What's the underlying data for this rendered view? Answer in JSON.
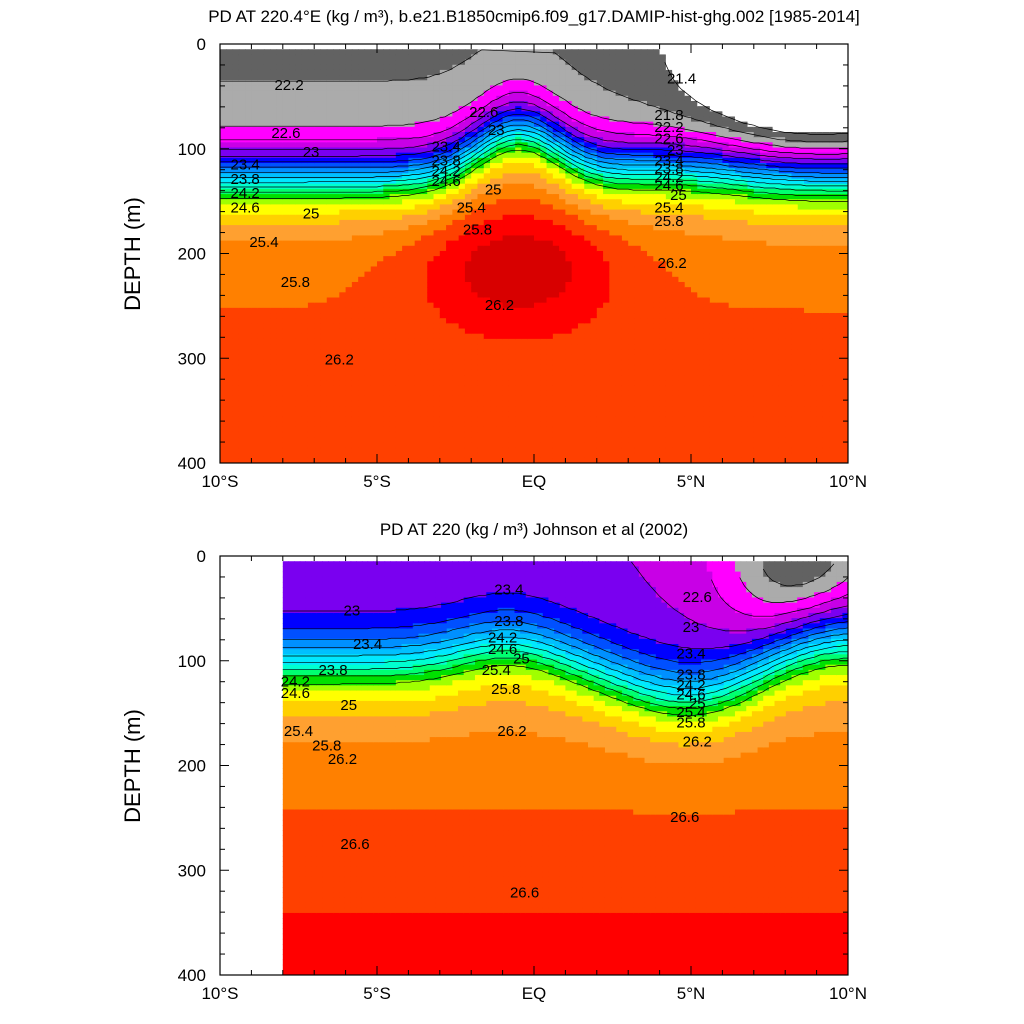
{
  "chart_data": [
    {
      "type": "heatmap",
      "title": "PD AT 220.4°E (kg / m³), b.e21.B1850cmip6.f09_g17.DAMIP-hist-ghg.002 [1985-2014]",
      "ylabel": "DEPTH (m)",
      "xlabel": "",
      "xlim": [
        -10,
        10
      ],
      "ylim": [
        400,
        0
      ],
      "x_ticks": [
        {
          "value": -10,
          "label": "10°S"
        },
        {
          "value": -5,
          "label": "5°S"
        },
        {
          "value": 0,
          "label": "EQ"
        },
        {
          "value": 5,
          "label": "5°N"
        },
        {
          "value": 10,
          "label": "10°N"
        }
      ],
      "y_ticks": [
        0,
        100,
        200,
        300,
        400
      ],
      "data_extent": {
        "x": [
          -10,
          10
        ],
        "y": [
          5,
          400
        ]
      },
      "contour_levels": [
        21.4,
        21.8,
        22.2,
        22.6,
        23.0,
        23.4,
        23.8,
        24.2,
        24.6,
        25.0,
        25.4,
        25.8,
        26.2,
        26.6
      ],
      "contour_labels": [
        {
          "x": -7.8,
          "y": 40,
          "text": "22.2"
        },
        {
          "x": -7.9,
          "y": 86,
          "text": "22.6"
        },
        {
          "x": -7.1,
          "y": 104,
          "text": "23"
        },
        {
          "x": -9.2,
          "y": 116,
          "text": "23.4"
        },
        {
          "x": -9.2,
          "y": 130,
          "text": "23.8"
        },
        {
          "x": -9.2,
          "y": 143,
          "text": "24.2"
        },
        {
          "x": -9.2,
          "y": 157,
          "text": "24.6"
        },
        {
          "x": -7.1,
          "y": 163,
          "text": "25"
        },
        {
          "x": -8.6,
          "y": 190,
          "text": "25.4"
        },
        {
          "x": -7.6,
          "y": 228,
          "text": "25.8"
        },
        {
          "x": -6.2,
          "y": 302,
          "text": "26.2"
        },
        {
          "x": -1.6,
          "y": 66,
          "text": "22.6"
        },
        {
          "x": -1.2,
          "y": 83,
          "text": "23"
        },
        {
          "x": -2.8,
          "y": 99,
          "text": "23.4"
        },
        {
          "x": -2.8,
          "y": 112,
          "text": "23.8"
        },
        {
          "x": -2.8,
          "y": 122,
          "text": "24.2"
        },
        {
          "x": -2.8,
          "y": 132,
          "text": "24.6"
        },
        {
          "x": -1.3,
          "y": 140,
          "text": "25"
        },
        {
          "x": -2.0,
          "y": 157,
          "text": "25.4"
        },
        {
          "x": -1.8,
          "y": 178,
          "text": "25.8"
        },
        {
          "x": -1.1,
          "y": 250,
          "text": "26.2"
        },
        {
          "x": 4.7,
          "y": 34,
          "text": "21.4"
        },
        {
          "x": 4.3,
          "y": 69,
          "text": "21.8"
        },
        {
          "x": 4.3,
          "y": 80,
          "text": "22.2"
        },
        {
          "x": 4.3,
          "y": 91,
          "text": "22.6"
        },
        {
          "x": 4.5,
          "y": 102,
          "text": "23"
        },
        {
          "x": 4.3,
          "y": 112,
          "text": "23.4"
        },
        {
          "x": 4.3,
          "y": 120,
          "text": "23.8"
        },
        {
          "x": 4.3,
          "y": 128,
          "text": "24.2"
        },
        {
          "x": 4.3,
          "y": 136,
          "text": "24.6"
        },
        {
          "x": 4.6,
          "y": 145,
          "text": "25"
        },
        {
          "x": 4.3,
          "y": 157,
          "text": "25.4"
        },
        {
          "x": 4.3,
          "y": 170,
          "text": "25.8"
        },
        {
          "x": 4.4,
          "y": 210,
          "text": "26.2"
        }
      ]
    },
    {
      "type": "heatmap",
      "title": "PD AT 220 (kg / m³) Johnson et al (2002)",
      "ylabel": "DEPTH (m)",
      "xlabel": "",
      "xlim": [
        -10,
        10
      ],
      "ylim": [
        400,
        0
      ],
      "x_ticks": [
        {
          "value": -10,
          "label": "10°S"
        },
        {
          "value": -5,
          "label": "5°S"
        },
        {
          "value": 0,
          "label": "EQ"
        },
        {
          "value": 5,
          "label": "5°N"
        },
        {
          "value": 10,
          "label": "10°N"
        }
      ],
      "y_ticks": [
        0,
        100,
        200,
        300,
        400
      ],
      "data_extent": {
        "x": [
          -8,
          10
        ],
        "y": [
          5,
          400
        ]
      },
      "contour_levels": [
        21.8,
        22.2,
        22.6,
        23.0,
        23.4,
        23.8,
        24.2,
        24.6,
        25.0,
        25.4,
        25.8,
        26.2,
        26.6
      ],
      "contour_labels": [
        {
          "x": -5.8,
          "y": 53,
          "text": "23"
        },
        {
          "x": -5.3,
          "y": 85,
          "text": "23.4"
        },
        {
          "x": -6.4,
          "y": 110,
          "text": "23.8"
        },
        {
          "x": -7.6,
          "y": 121,
          "text": "24.2"
        },
        {
          "x": -7.6,
          "y": 132,
          "text": "24.6"
        },
        {
          "x": -5.9,
          "y": 143,
          "text": "25"
        },
        {
          "x": -7.5,
          "y": 168,
          "text": "25.4"
        },
        {
          "x": -6.6,
          "y": 182,
          "text": "25.8"
        },
        {
          "x": -6.1,
          "y": 195,
          "text": "26.2"
        },
        {
          "x": -5.7,
          "y": 276,
          "text": "26.6"
        },
        {
          "x": -0.8,
          "y": 33,
          "text": "23.4"
        },
        {
          "x": -0.8,
          "y": 63,
          "text": "23.8"
        },
        {
          "x": -1.0,
          "y": 79,
          "text": "24.2"
        },
        {
          "x": -1.0,
          "y": 90,
          "text": "24.6"
        },
        {
          "x": -0.4,
          "y": 99,
          "text": "25"
        },
        {
          "x": -1.2,
          "y": 110,
          "text": "25.4"
        },
        {
          "x": -0.9,
          "y": 128,
          "text": "25.8"
        },
        {
          "x": -0.7,
          "y": 168,
          "text": "26.2"
        },
        {
          "x": -0.3,
          "y": 322,
          "text": "26.6"
        },
        {
          "x": 5.2,
          "y": 40,
          "text": "22.6"
        },
        {
          "x": 5.0,
          "y": 69,
          "text": "23"
        },
        {
          "x": 5.0,
          "y": 94,
          "text": "23.4"
        },
        {
          "x": 5.0,
          "y": 114,
          "text": "23.8"
        },
        {
          "x": 5.0,
          "y": 124,
          "text": "24.2"
        },
        {
          "x": 5.0,
          "y": 133,
          "text": "24.6"
        },
        {
          "x": 5.2,
          "y": 142,
          "text": "25"
        },
        {
          "x": 5.0,
          "y": 150,
          "text": "25.4"
        },
        {
          "x": 5.0,
          "y": 160,
          "text": "25.8"
        },
        {
          "x": 5.2,
          "y": 178,
          "text": "26.2"
        },
        {
          "x": 4.8,
          "y": 250,
          "text": "26.6"
        }
      ]
    }
  ],
  "color_scale": {
    "21.0": "#ffffff",
    "21.4": "#626262",
    "21.8": "#ababab",
    "22.2": "#ff00ff",
    "22.6": "#c800e6",
    "23.0": "#7a00f0",
    "23.4": "#0000ff",
    "23.8": "#0050ff",
    "24.2": "#0090ff",
    "24.6": "#00c0ff",
    "25.0": "#00e8ff",
    "25.4": "#00ffd0",
    "25.8": "#00ff70",
    "26.2": "#00e000",
    "26.6": "#a0ff00",
    "27.0": "#ffff00",
    "27.4": "#ffd000",
    "27.8": "#ffa030",
    "28.2": "#ff8000",
    "28.6": "#ff4000",
    "29.0": "#ff0000",
    "29.4": "#d80000",
    "29.8": "#b80000"
  }
}
